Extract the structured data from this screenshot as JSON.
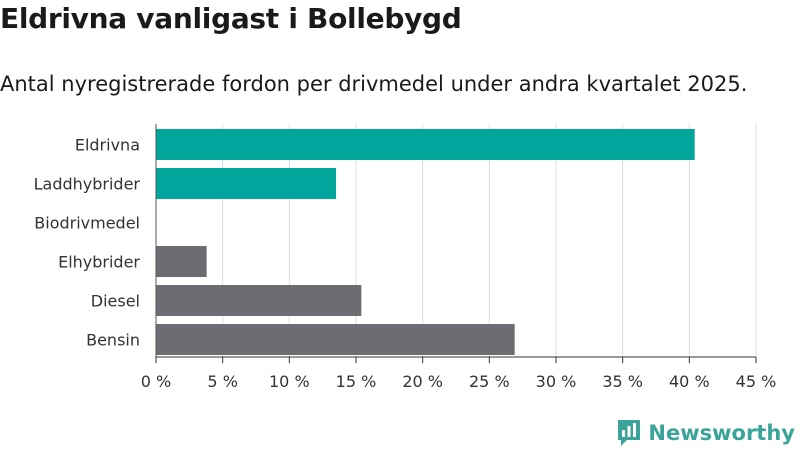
{
  "header": {
    "title": "Eldrivna vanligast i Bollebygd",
    "subtitle": "Antal nyregistrerade fordon per drivmedel under andra kvartalet 2025."
  },
  "brand": {
    "name": "Newsworthy",
    "icon": "newsworthy-logo-icon"
  },
  "colors": {
    "highlight": "#00a59b",
    "other": "#6d6c72",
    "grid": "#dddddd"
  },
  "chart_data": {
    "type": "bar",
    "orientation": "horizontal",
    "categories": [
      "Eldrivna",
      "Laddhybrider",
      "Biodrivmedel",
      "Elhybrider",
      "Diesel",
      "Bensin"
    ],
    "values": [
      40.4,
      13.5,
      0,
      3.8,
      15.4,
      26.9
    ],
    "bar_colors": [
      "#00a59b",
      "#00a59b",
      "#00a59b",
      "#6d6c72",
      "#6d6c72",
      "#6d6c72"
    ],
    "xlim": [
      0,
      45
    ],
    "xticks": [
      0,
      5,
      10,
      15,
      20,
      25,
      30,
      35,
      40,
      45
    ],
    "xtick_labels": [
      "0 %",
      "5 %",
      "10 %",
      "15 %",
      "20 %",
      "25 %",
      "30 %",
      "35 %",
      "40 %",
      "45 %"
    ],
    "grid": true
  }
}
